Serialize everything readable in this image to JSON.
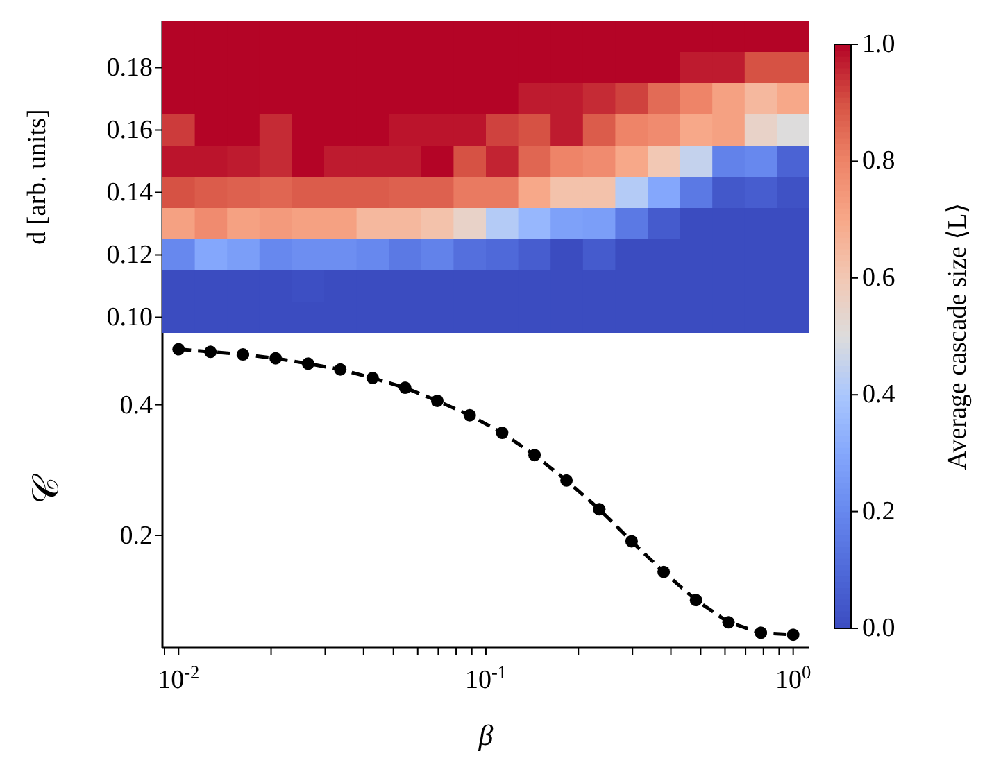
{
  "chart_data": [
    {
      "type": "heatmap",
      "ylabel": "d [arb. units]",
      "clabel": "Average cascade size ⟨L⟩",
      "categories": [
        null,
        null,
        null,
        null,
        null,
        null,
        null,
        null,
        null,
        null,
        null,
        null,
        null,
        null,
        null,
        null,
        null,
        null,
        null,
        null
      ],
      "cells": [
        [
          1,
          1,
          1,
          1,
          1,
          1,
          1,
          1,
          1,
          1,
          1,
          1,
          1,
          1,
          1,
          1,
          1,
          1,
          1,
          1
        ],
        [
          1,
          1,
          1,
          1,
          1,
          1,
          1,
          1,
          1,
          1,
          1,
          1,
          1,
          1,
          1,
          1,
          0.97,
          0.97,
          0.9,
          0.9
        ],
        [
          1,
          1,
          1,
          1,
          1,
          1,
          1,
          1,
          1,
          1,
          1,
          0.97,
          0.97,
          0.95,
          0.92,
          0.85,
          0.8,
          0.72,
          0.65,
          0.7
        ],
        [
          0.93,
          1,
          1,
          0.95,
          1,
          1,
          1,
          0.98,
          0.98,
          0.98,
          0.92,
          0.9,
          0.97,
          0.88,
          0.8,
          0.78,
          0.7,
          0.72,
          0.55,
          0.5
        ],
        [
          0.98,
          0.98,
          0.97,
          0.95,
          1,
          0.97,
          0.97,
          0.97,
          1,
          0.9,
          0.96,
          0.86,
          0.8,
          0.78,
          0.7,
          0.6,
          0.45,
          0.18,
          0.2,
          0.08
        ],
        [
          0.9,
          0.88,
          0.87,
          0.86,
          0.88,
          0.88,
          0.88,
          0.87,
          0.87,
          0.82,
          0.82,
          0.7,
          0.62,
          0.62,
          0.42,
          0.3,
          0.15,
          0.04,
          0.06,
          0.02
        ],
        [
          0.72,
          0.78,
          0.72,
          0.74,
          0.72,
          0.72,
          0.65,
          0.65,
          0.62,
          0.55,
          0.42,
          0.35,
          0.28,
          0.27,
          0.15,
          0.05,
          0,
          0,
          0,
          0
        ],
        [
          0.2,
          0.3,
          0.27,
          0.2,
          0.22,
          0.22,
          0.2,
          0.15,
          0.18,
          0.12,
          0.1,
          0.06,
          0,
          0.05,
          0,
          0,
          0,
          0,
          0,
          0
        ],
        [
          0,
          0,
          0,
          0,
          0.01,
          0,
          0,
          0,
          0,
          0,
          0,
          0,
          0,
          0,
          0,
          0,
          0,
          0,
          0,
          0
        ],
        [
          0,
          0,
          0,
          0,
          0,
          0,
          0,
          0,
          0,
          0,
          0,
          0,
          0,
          0,
          0,
          0,
          0,
          0,
          0,
          0
        ]
      ],
      "clim": [
        0,
        1
      ],
      "cticks": [
        {
          "value": 0,
          "label": "0.0"
        },
        0.2,
        0.4,
        0.6,
        0.8,
        {
          "value": 1,
          "label": "1.0"
        }
      ],
      "y_categories": [
        null,
        "0.18",
        null,
        "0.16",
        null,
        "0.14",
        null,
        "0.12",
        null,
        "0.10"
      ],
      "tick_labels": "y"
    },
    {
      "type": "line",
      "xlabel": "β",
      "ylabel": "𝒞",
      "log": "x",
      "marker": "circle",
      "line_style": "dashed",
      "x": [
        0.01,
        0.0127,
        0.0162,
        0.0207,
        0.0264,
        0.0336,
        0.0428,
        0.0546,
        0.0695,
        0.0886,
        0.113,
        0.144,
        0.183,
        0.234,
        0.298,
        0.379,
        0.483,
        0.616,
        0.785,
        1
      ],
      "series": [
        {
          "color": "#000000",
          "values": [
            0.485,
            0.481,
            0.477,
            0.471,
            0.463,
            0.454,
            0.441,
            0.426,
            0.406,
            0.384,
            0.357,
            0.323,
            0.284,
            0.24,
            0.191,
            0.144,
            0.101,
            0.067,
            0.051,
            0.048
          ]
        }
      ],
      "xlim": [
        0.00886,
        1.129
      ],
      "ylim": [
        0.028,
        0.51
      ],
      "yticks": [
        0.2,
        0.4
      ],
      "xticks": [
        {
          "value": 0.009,
          "label": null
        },
        {
          "value": 0.01,
          "label": "10$^{-2}$"
        },
        {
          "value": 0.02,
          "label": null
        },
        {
          "value": 0.03,
          "label": null
        },
        {
          "value": 0.04,
          "label": null
        },
        {
          "value": 0.05,
          "label": null
        },
        {
          "value": 0.06,
          "label": null
        },
        {
          "value": 0.07,
          "label": null
        },
        {
          "value": 0.08,
          "label": null
        },
        {
          "value": 0.09,
          "label": null
        },
        {
          "value": 0.1,
          "label": "10$^{-1}$"
        },
        {
          "value": 0.2,
          "label": null
        },
        {
          "value": 0.3,
          "label": null
        },
        {
          "value": 0.4,
          "label": null
        },
        {
          "value": 0.5,
          "label": null
        },
        {
          "value": 0.6,
          "label": null
        },
        {
          "value": 0.7,
          "label": null
        },
        {
          "value": 0.8,
          "label": null
        },
        {
          "value": 0.9,
          "label": null
        },
        {
          "value": 1,
          "label": "10$^{0}$"
        }
      ]
    }
  ]
}
